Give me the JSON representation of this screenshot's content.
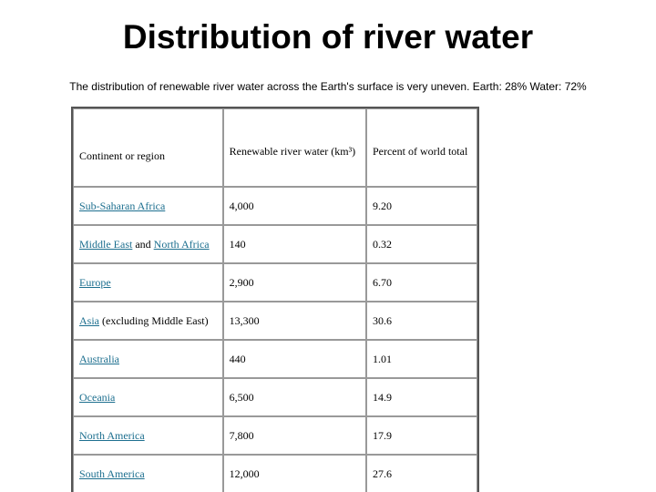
{
  "header": {
    "title": "Distribution of river water",
    "subtitle": "The distribution of renewable river water across the Earth's surface is very uneven. Earth: 28% Water: 72%"
  },
  "table": {
    "columns": [
      "Continent or region",
      "Renewable river water (km³)",
      "Percent of world total"
    ],
    "rows": [
      {
        "region": [
          {
            "text": "Sub-Saharan Africa",
            "link": true
          }
        ],
        "water": "4,000",
        "percent": "9.20"
      },
      {
        "region": [
          {
            "text": "Middle East",
            "link": true
          },
          {
            "text": "and",
            "link": false
          },
          {
            "text": "North Africa",
            "link": true
          }
        ],
        "water": "140",
        "percent": "0.32"
      },
      {
        "region": [
          {
            "text": "Europe",
            "link": true
          }
        ],
        "water": "2,900",
        "percent": "6.70"
      },
      {
        "region": [
          {
            "text": "Asia",
            "link": true
          },
          {
            "text": "(excluding Middle East)",
            "link": false
          }
        ],
        "water": "13,300",
        "percent": "30.6"
      },
      {
        "region": [
          {
            "text": "Australia",
            "link": true
          }
        ],
        "water": "440",
        "percent": "1.01"
      },
      {
        "region": [
          {
            "text": "Oceania",
            "link": true
          }
        ],
        "water": "6,500",
        "percent": "14.9"
      },
      {
        "region": [
          {
            "text": "North America",
            "link": true
          }
        ],
        "water": "7,800",
        "percent": "17.9"
      },
      {
        "region": [
          {
            "text": "South America",
            "link": true
          }
        ],
        "water": "12,000",
        "percent": "27.6"
      }
    ]
  }
}
